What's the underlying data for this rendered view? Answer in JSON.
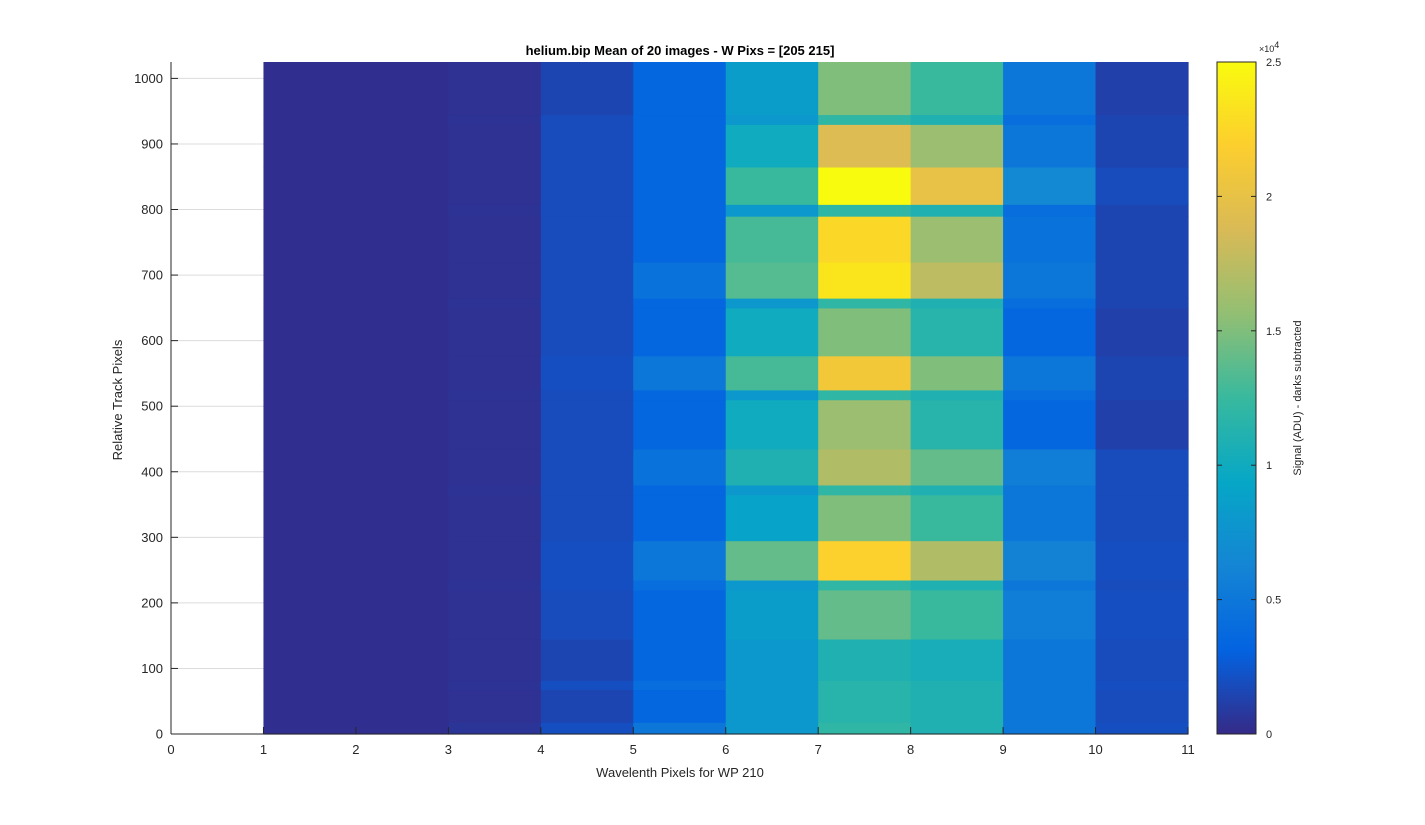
{
  "chart_data": {
    "type": "heatmap",
    "title": "helium.bip  Mean of 20 images - W Pixs = [205  215]",
    "xlabel": "Wavelenth Pixels for WP 210",
    "ylabel": "Relative Track Pixels",
    "xlim": [
      0,
      11
    ],
    "ylim": [
      0,
      1025
    ],
    "xticks": [
      0,
      1,
      2,
      3,
      4,
      5,
      6,
      7,
      8,
      9,
      10,
      11
    ],
    "yticks": [
      0,
      100,
      200,
      300,
      400,
      500,
      600,
      700,
      800,
      900,
      1000
    ],
    "grid": "y-major",
    "colormap": "parula",
    "colorbar": {
      "label": "Signal (ADU) - darks subtracted",
      "limits": [
        0,
        25000
      ],
      "ticks": [
        0,
        0.5,
        1,
        1.5,
        2,
        2.5
      ],
      "tick_labels": [
        "0",
        "0.5",
        "1",
        "1.5",
        "2",
        "2.5"
      ],
      "multiplier_base": "×10",
      "multiplier_exp": "4"
    },
    "column_edges": [
      1,
      2,
      3,
      4,
      5,
      6,
      7,
      8,
      9,
      10,
      11
    ],
    "bands": [
      {
        "y0": 0,
        "y1": 18,
        "values": [
          300,
          300,
          600,
          2000,
          5000,
          8000,
          12000,
          11000,
          5000,
          2000
        ]
      },
      {
        "y0": 18,
        "y1": 68,
        "values": [
          300,
          300,
          400,
          1500,
          3500,
          8000,
          11500,
          11000,
          5000,
          1800
        ]
      },
      {
        "y0": 68,
        "y1": 82,
        "values": [
          300,
          300,
          500,
          2000,
          4000,
          8000,
          11500,
          11000,
          5000,
          2000
        ]
      },
      {
        "y0": 82,
        "y1": 145,
        "values": [
          300,
          300,
          400,
          1500,
          3500,
          8000,
          11000,
          10500,
          5000,
          1800
        ]
      },
      {
        "y0": 145,
        "y1": 220,
        "values": [
          300,
          300,
          400,
          1800,
          3500,
          8500,
          14000,
          12500,
          5500,
          2000
        ]
      },
      {
        "y0": 220,
        "y1": 235,
        "values": [
          300,
          300,
          500,
          2000,
          4000,
          8000,
          12000,
          11000,
          5000,
          1800
        ]
      },
      {
        "y0": 235,
        "y1": 295,
        "values": [
          300,
          300,
          400,
          2000,
          5000,
          14000,
          22000,
          17000,
          6000,
          2000
        ]
      },
      {
        "y0": 295,
        "y1": 365,
        "values": [
          300,
          300,
          400,
          1800,
          3500,
          9000,
          15000,
          12500,
          5000,
          1800
        ]
      },
      {
        "y0": 365,
        "y1": 380,
        "values": [
          300,
          300,
          500,
          1800,
          3500,
          8000,
          12000,
          11000,
          5000,
          1800
        ]
      },
      {
        "y0": 380,
        "y1": 435,
        "values": [
          300,
          300,
          400,
          1800,
          4500,
          11000,
          17000,
          14000,
          5500,
          1800
        ]
      },
      {
        "y0": 435,
        "y1": 510,
        "values": [
          300,
          300,
          400,
          1800,
          3500,
          10000,
          16000,
          11500,
          3500,
          1200
        ]
      },
      {
        "y0": 510,
        "y1": 525,
        "values": [
          300,
          300,
          500,
          1800,
          3500,
          8000,
          12000,
          11000,
          4000,
          1500
        ]
      },
      {
        "y0": 525,
        "y1": 577,
        "values": [
          300,
          300,
          400,
          2000,
          5000,
          13000,
          21000,
          15000,
          5000,
          1500
        ]
      },
      {
        "y0": 577,
        "y1": 650,
        "values": [
          300,
          300,
          400,
          1800,
          3500,
          10000,
          15000,
          11500,
          3500,
          1200
        ]
      },
      {
        "y0": 650,
        "y1": 665,
        "values": [
          300,
          300,
          500,
          1800,
          3500,
          8000,
          12000,
          11000,
          4000,
          1500
        ]
      },
      {
        "y0": 665,
        "y1": 720,
        "values": [
          300,
          300,
          400,
          1800,
          4500,
          13500,
          23500,
          17500,
          5000,
          1500
        ]
      },
      {
        "y0": 720,
        "y1": 790,
        "values": [
          300,
          300,
          400,
          1800,
          3500,
          13000,
          22500,
          16000,
          4500,
          1500
        ]
      },
      {
        "y0": 790,
        "y1": 808,
        "values": [
          300,
          300,
          500,
          1800,
          3500,
          8000,
          12000,
          11000,
          4000,
          1500
        ]
      },
      {
        "y0": 808,
        "y1": 865,
        "values": [
          300,
          300,
          400,
          1800,
          3500,
          12500,
          25000,
          20000,
          6500,
          1800
        ]
      },
      {
        "y0": 865,
        "y1": 930,
        "values": [
          300,
          300,
          400,
          1800,
          3500,
          10000,
          19000,
          16000,
          5000,
          1500
        ]
      },
      {
        "y0": 930,
        "y1": 945,
        "values": [
          300,
          300,
          500,
          1800,
          3500,
          8000,
          12000,
          11000,
          4000,
          1500
        ]
      },
      {
        "y0": 945,
        "y1": 1025,
        "values": [
          300,
          300,
          400,
          1500,
          3500,
          8500,
          15000,
          12500,
          5000,
          1200
        ]
      }
    ]
  }
}
